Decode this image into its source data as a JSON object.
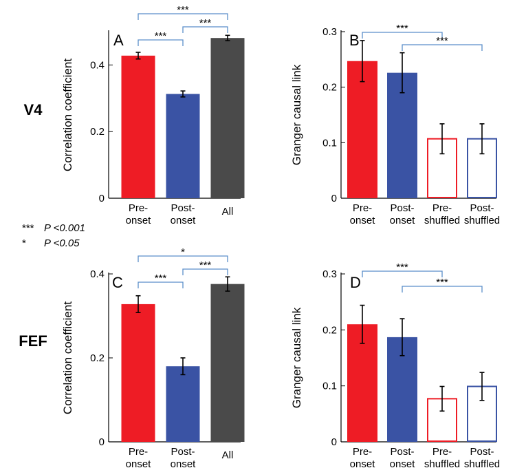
{
  "row_labels": [
    "V4",
    "FEF"
  ],
  "legend": [
    {
      "stars": "***",
      "text": "P <0.001"
    },
    {
      "stars": "*",
      "text": "P <0.05"
    }
  ],
  "colors": {
    "red": "#ee1c25",
    "blue": "#3a53a4",
    "gray": "#4a4a4a",
    "bracket": "#5b8ec9",
    "white": "#ffffff",
    "black": "#000000"
  },
  "chart_data": [
    {
      "panel": "A",
      "row": "V4",
      "type": "bar",
      "ylabel": "Correlation coefficient",
      "ylim": [
        0,
        0.5
      ],
      "yticks": [
        0,
        0.2,
        0.4
      ],
      "ytick_labels": [
        "0",
        "0.2",
        "0.4"
      ],
      "categories": [
        [
          "Pre-",
          "onset"
        ],
        [
          "Post-",
          "onset"
        ],
        [
          "All"
        ]
      ],
      "values": [
        0.428,
        0.313,
        0.481
      ],
      "errors": [
        0.01,
        0.009,
        0.008
      ],
      "bar_styles": [
        "red",
        "blue",
        "gray"
      ],
      "filled": [
        true,
        true,
        true
      ],
      "brackets": [
        {
          "from": 0,
          "to": 1,
          "label": "***",
          "level": 0
        },
        {
          "from": 1,
          "to": 2,
          "label": "***",
          "level": 1
        },
        {
          "from": 0,
          "to": 2,
          "label": "***",
          "level": 2
        }
      ]
    },
    {
      "panel": "B",
      "row": "V4",
      "type": "bar",
      "ylabel": "Granger causal link",
      "ylim": [
        0,
        0.3
      ],
      "yticks": [
        0,
        0.1,
        0.2,
        0.3
      ],
      "ytick_labels": [
        "0",
        "0.1",
        "0.2",
        "0.3"
      ],
      "categories": [
        [
          "Pre-",
          "onset"
        ],
        [
          "Post-",
          "onset"
        ],
        [
          "Pre-",
          "shuffled"
        ],
        [
          "Post-",
          "shuffled"
        ]
      ],
      "values": [
        0.247,
        0.226,
        0.107,
        0.107
      ],
      "errors": [
        0.037,
        0.036,
        0.027,
        0.027
      ],
      "bar_styles": [
        "red",
        "blue",
        "red",
        "blue"
      ],
      "filled": [
        true,
        true,
        false,
        false
      ],
      "brackets": [
        {
          "from": 0,
          "to": 2,
          "label": "***",
          "level": 1
        },
        {
          "from": 1,
          "to": 3,
          "label": "***",
          "level": 0
        }
      ]
    },
    {
      "panel": "C",
      "row": "FEF",
      "type": "bar",
      "ylabel": "Correlation coefficient",
      "ylim": [
        0,
        0.4
      ],
      "yticks": [
        0,
        0.2,
        0.4
      ],
      "ytick_labels": [
        "0",
        "0.2",
        "0.4"
      ],
      "categories": [
        [
          "Pre-",
          "onset"
        ],
        [
          "Post-",
          "onset"
        ],
        [
          "All"
        ]
      ],
      "values": [
        0.328,
        0.18,
        0.376
      ],
      "errors": [
        0.02,
        0.02,
        0.017
      ],
      "bar_styles": [
        "red",
        "blue",
        "gray"
      ],
      "filled": [
        true,
        true,
        true
      ],
      "brackets": [
        {
          "from": 0,
          "to": 1,
          "label": "***",
          "level": 0
        },
        {
          "from": 1,
          "to": 2,
          "label": "***",
          "level": 1
        },
        {
          "from": 0,
          "to": 2,
          "label": "*",
          "level": 2
        }
      ]
    },
    {
      "panel": "D",
      "row": "FEF",
      "type": "bar",
      "ylabel": "Granger causal link",
      "ylim": [
        0,
        0.3
      ],
      "yticks": [
        0,
        0.1,
        0.2,
        0.3
      ],
      "ytick_labels": [
        "0",
        "0.1",
        "0.2",
        "0.3"
      ],
      "categories": [
        [
          "Pre-",
          "onset"
        ],
        [
          "Post-",
          "onset"
        ],
        [
          "Pre-",
          "shuffled"
        ],
        [
          "Post-",
          "shuffled"
        ]
      ],
      "values": [
        0.21,
        0.187,
        0.077,
        0.099
      ],
      "errors": [
        0.034,
        0.033,
        0.022,
        0.025
      ],
      "bar_styles": [
        "red",
        "blue",
        "red",
        "blue"
      ],
      "filled": [
        true,
        true,
        false,
        false
      ],
      "brackets": [
        {
          "from": 0,
          "to": 2,
          "label": "***",
          "level": 1
        },
        {
          "from": 1,
          "to": 3,
          "label": "***",
          "level": 0
        }
      ]
    }
  ]
}
